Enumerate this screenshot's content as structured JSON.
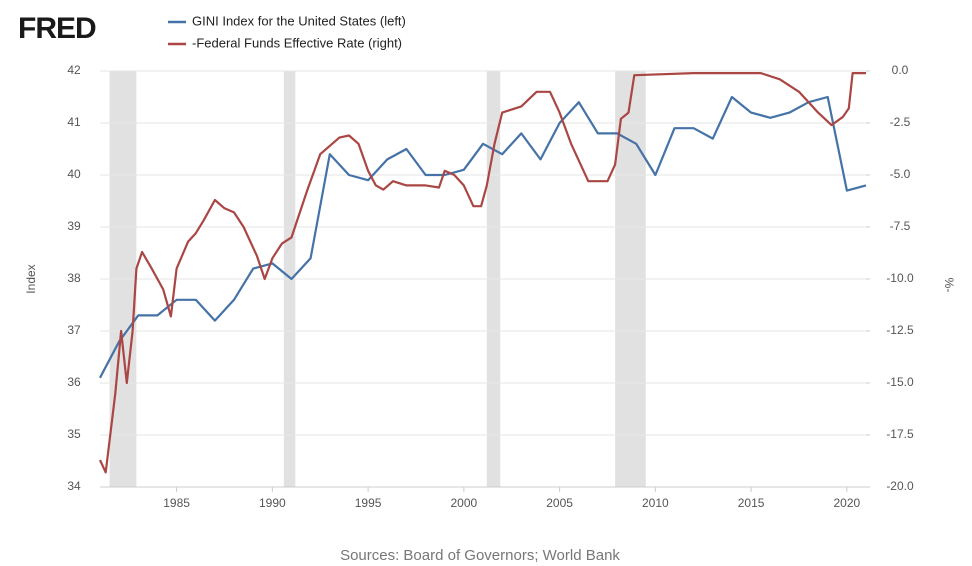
{
  "chart_data": {
    "type": "line",
    "logo": "FRED",
    "source": "Sources: Board of Governors; World Bank",
    "ylabel": "Index",
    "y2label": "%-",
    "xlim": [
      1981,
      2021
    ],
    "xticks": [
      1985,
      1990,
      1995,
      2000,
      2005,
      2010,
      2015,
      2020
    ],
    "ylim": [
      34,
      42
    ],
    "yticks": [
      34,
      35,
      36,
      37,
      38,
      39,
      40,
      41,
      42
    ],
    "y2lim": [
      -20,
      0
    ],
    "y2ticks": [
      {
        "value": -20,
        "label": "-20.0"
      },
      -17.5,
      {
        "value": -15,
        "label": "-15.0"
      },
      -12.5,
      {
        "value": -10,
        "label": "-10.0"
      },
      -7.5,
      {
        "value": -5,
        "label": "-5.0"
      },
      -2.5,
      {
        "value": 0,
        "label": "0.0"
      }
    ],
    "grid": true,
    "recessions": [
      [
        1981.5,
        1982.9
      ],
      [
        1990.6,
        1991.2
      ],
      [
        2001.2,
        2001.9
      ],
      [
        2007.9,
        2009.5
      ]
    ],
    "series": [
      {
        "name": "GINI Index for the United States (left)",
        "color": "#4572a7",
        "axis": "y",
        "x": [
          1981,
          1982,
          1983,
          1984,
          1985,
          1986,
          1987,
          1988,
          1989,
          1990,
          1991,
          1992,
          1993,
          1994,
          1995,
          1996,
          1997,
          1998,
          1999,
          2000,
          2001,
          2002,
          2003,
          2004,
          2005,
          2006,
          2007,
          2008,
          2009,
          2010,
          2011,
          2012,
          2013,
          2014,
          2015,
          2016,
          2017,
          2018,
          2019,
          2020,
          2021
        ],
        "values": [
          36.1,
          36.8,
          37.3,
          37.3,
          37.6,
          37.6,
          37.2,
          37.6,
          38.2,
          38.3,
          38.0,
          38.4,
          40.4,
          40.0,
          39.9,
          40.3,
          40.5,
          40.0,
          40.0,
          40.1,
          40.6,
          40.4,
          40.8,
          40.3,
          41.0,
          41.4,
          40.8,
          40.8,
          40.6,
          40.0,
          40.9,
          40.9,
          40.7,
          41.5,
          41.2,
          41.1,
          41.2,
          41.4,
          41.5,
          39.7,
          39.8
        ]
      },
      {
        "name": "-Federal Funds Effective Rate (right)",
        "color": "#aa4643",
        "axis": "y2",
        "x": [
          1981.0,
          1981.3,
          1981.8,
          1982.1,
          1982.4,
          1982.7,
          1982.9,
          1983.2,
          1983.7,
          1984.3,
          1984.7,
          1985.0,
          1985.6,
          1986.0,
          1986.4,
          1987.0,
          1987.5,
          1988.0,
          1988.5,
          1989.2,
          1989.6,
          1990.0,
          1990.5,
          1991.0,
          1991.8,
          1992.5,
          1993.5,
          1994.0,
          1994.5,
          1995.0,
          1995.4,
          1995.8,
          1996.3,
          1997.0,
          1998.0,
          1998.7,
          1999.0,
          1999.5,
          2000.0,
          2000.5,
          2000.9,
          2001.2,
          2001.6,
          2002.0,
          2003.0,
          2003.8,
          2004.5,
          2005.0,
          2005.6,
          2006.5,
          2007.5,
          2007.9,
          2008.2,
          2008.6,
          2008.9,
          2012.0,
          2015.5,
          2016.5,
          2017.5,
          2018.5,
          2019.2,
          2019.8,
          2020.1,
          2020.3,
          2021.0
        ],
        "values": [
          -18.7,
          -19.3,
          -15.5,
          -12.5,
          -15.0,
          -12.5,
          -9.5,
          -8.7,
          -9.5,
          -10.5,
          -11.8,
          -9.5,
          -8.2,
          -7.8,
          -7.2,
          -6.2,
          -6.6,
          -6.8,
          -7.5,
          -8.9,
          -10.0,
          -9.0,
          -8.3,
          -8.0,
          -5.8,
          -4.0,
          -3.2,
          -3.1,
          -3.5,
          -4.8,
          -5.5,
          -5.7,
          -5.3,
          -5.5,
          -5.5,
          -5.6,
          -4.8,
          -5.0,
          -5.5,
          -6.5,
          -6.5,
          -5.5,
          -3.5,
          -2.0,
          -1.7,
          -1.0,
          -1.0,
          -2.0,
          -3.5,
          -5.3,
          -5.3,
          -4.5,
          -2.3,
          -2.0,
          -0.2,
          -0.1,
          -0.1,
          -0.4,
          -1.0,
          -2.0,
          -2.6,
          -2.2,
          -1.8,
          -0.1,
          -0.1
        ]
      }
    ]
  }
}
